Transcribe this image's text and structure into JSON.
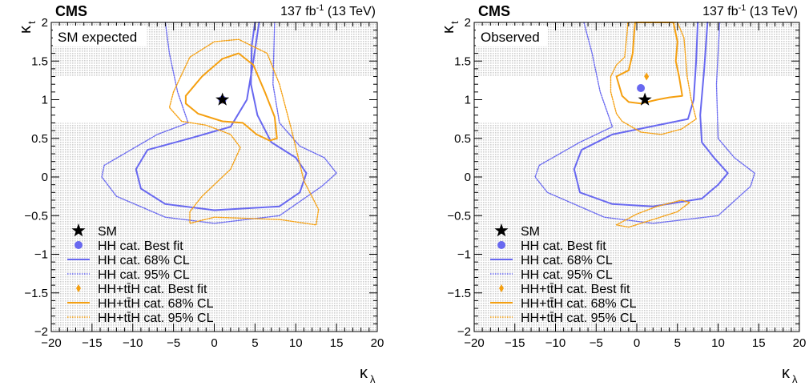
{
  "colors": {
    "hh": "#6868f0",
    "tth": "#f5a011",
    "band": "#d8d8d8",
    "star": "#000000"
  },
  "common": {
    "experiment": "CMS",
    "lumi": "137 fb",
    "lumi_exp": "-1",
    "energy": " (13 TeV)",
    "xlabel": "κ",
    "xlabel_sub": "λ",
    "ylabel": "κ",
    "ylabel_sub": "t"
  },
  "legend": [
    {
      "text": "SM",
      "kind": "star"
    },
    {
      "text": "HH cat. Best fit",
      "kind": "hh-dot"
    },
    {
      "text": "HH cat. 68% CL",
      "kind": "hh-solid"
    },
    {
      "text": "HH cat. 95% CL",
      "kind": "hh-dotted"
    },
    {
      "text": "HH+tt̄H cat. Best fit",
      "kind": "tth-diamond"
    },
    {
      "text": "HH+tt̄H cat. 68% CL",
      "kind": "tth-solid"
    },
    {
      "text": "HH+tt̄H cat. 95% CL",
      "kind": "tth-dotted"
    }
  ],
  "chart_data": [
    {
      "type": "scatter",
      "panel_label": "SM expected",
      "x_ticks": [
        -20,
        -15,
        -10,
        -5,
        0,
        5,
        10,
        15,
        20
      ],
      "y_ticks": [
        -2,
        -1.5,
        -1,
        -0.5,
        0,
        0.5,
        1,
        1.5,
        2
      ],
      "y_tick_labels": [
        "−2",
        "−1.5",
        "−1",
        "−0.5",
        "0",
        "0.5",
        "1",
        "1.5",
        "2"
      ],
      "xlim": [
        -20,
        20
      ],
      "ylim": [
        -2,
        2
      ],
      "excluded_bands_y": [
        [
          -2,
          0.7
        ],
        [
          1.3,
          2
        ]
      ],
      "sm_point": {
        "x": 1,
        "y": 1
      },
      "hh_best_fit": {
        "x": 1,
        "y": 1
      },
      "tth_best_fit": {
        "x": 1,
        "y": 1
      },
      "contours": [
        {
          "series": "HH cat. 68% CL",
          "style": "hh-solid",
          "points": [
            [
              5.5,
              2
            ],
            [
              4.8,
              1.5
            ],
            [
              4,
              1
            ],
            [
              2,
              0.65
            ],
            [
              -3,
              0.5
            ],
            [
              -8.2,
              0.35
            ],
            [
              -9.6,
              0.1
            ],
            [
              -9,
              -0.15
            ],
            [
              -6,
              -0.35
            ],
            [
              0,
              -0.43
            ],
            [
              8,
              -0.38
            ],
            [
              10.5,
              -0.2
            ],
            [
              11.3,
              0.05
            ],
            [
              10,
              0.25
            ],
            [
              7,
              0.45
            ],
            [
              5.3,
              0.8
            ],
            [
              4.5,
              1.2
            ],
            [
              4.6,
              1.7
            ],
            [
              5,
              2
            ]
          ]
        },
        {
          "series": "HH cat. 95% CL",
          "style": "hh-dotted",
          "points": [
            [
              -6,
              2
            ],
            [
              -5.5,
              1.6
            ],
            [
              -4.5,
              1.1
            ],
            [
              -3.2,
              0.7
            ],
            [
              -7,
              0.55
            ],
            [
              -13.5,
              0.15
            ],
            [
              -13.8,
              0
            ],
            [
              -12,
              -0.25
            ],
            [
              -6,
              -0.52
            ],
            [
              0,
              -0.6
            ],
            [
              8,
              -0.5
            ],
            [
              13.2,
              -0.12
            ],
            [
              15,
              0.05
            ],
            [
              13.5,
              0.25
            ],
            [
              10.5,
              0.4
            ],
            [
              8,
              0.7
            ],
            [
              7.2,
              1.2
            ],
            [
              7.4,
              2
            ]
          ]
        },
        {
          "series": "HH+tt̄H cat. 68% CL",
          "style": "tth-solid",
          "points": [
            [
              -3.5,
              1.05
            ],
            [
              -1.5,
              1.3
            ],
            [
              1,
              1.53
            ],
            [
              3,
              1.6
            ],
            [
              4.8,
              1.45
            ],
            [
              6.2,
              1.1
            ],
            [
              7.4,
              0.78
            ],
            [
              7.7,
              0.5
            ],
            [
              6.8,
              0.47
            ],
            [
              5.2,
              0.55
            ],
            [
              3.5,
              0.7
            ],
            [
              1,
              0.72
            ],
            [
              -2,
              0.82
            ],
            [
              -3.5,
              0.95
            ],
            [
              -3.5,
              1.05
            ]
          ]
        },
        {
          "series": "HH+tt̄H cat. 95% CL",
          "style": "tth-dotted",
          "points": [
            [
              -5,
              1.1
            ],
            [
              -3,
              1.55
            ],
            [
              0,
              1.75
            ],
            [
              3,
              1.78
            ],
            [
              6.5,
              1.6
            ],
            [
              8,
              1.2
            ],
            [
              9.5,
              0.6
            ],
            [
              11,
              -0.05
            ],
            [
              12.8,
              -0.42
            ],
            [
              12.5,
              -0.62
            ],
            [
              8,
              -0.55
            ],
            [
              0,
              -0.52
            ],
            [
              -3,
              -0.6
            ],
            [
              -3,
              -0.45
            ],
            [
              -1.5,
              -0.25
            ],
            [
              2,
              0.1
            ],
            [
              3.2,
              0.38
            ],
            [
              2,
              0.55
            ],
            [
              -1,
              0.67
            ],
            [
              -4,
              0.72
            ],
            [
              -5.5,
              0.9
            ],
            [
              -5,
              1.1
            ]
          ]
        }
      ]
    },
    {
      "type": "scatter",
      "panel_label": "Observed",
      "x_ticks": [
        -20,
        -15,
        -10,
        -5,
        0,
        5,
        10,
        15,
        20
      ],
      "y_ticks": [
        -2,
        -1.5,
        -1,
        -0.5,
        0,
        0.5,
        1,
        1.5,
        2
      ],
      "y_tick_labels": [
        "−2",
        "−1.5",
        "−1",
        "−0.5",
        "0",
        "0.5",
        "1",
        "1.5",
        "2"
      ],
      "xlim": [
        -20,
        20
      ],
      "ylim": [
        -2,
        2
      ],
      "excluded_bands_y": [
        [
          -2,
          0.7
        ],
        [
          1.3,
          2
        ]
      ],
      "sm_point": {
        "x": 1,
        "y": 1
      },
      "hh_best_fit": {
        "x": 0.5,
        "y": 1.15
      },
      "tth_best_fit": {
        "x": 1.2,
        "y": 1.3
      },
      "contours": [
        {
          "series": "HH cat. 68% CL",
          "style": "hh-solid",
          "points": [
            [
              7.5,
              2
            ],
            [
              7.3,
              1.5
            ],
            [
              7,
              1
            ],
            [
              6.3,
              0.75
            ],
            [
              -3,
              0.55
            ],
            [
              -6.8,
              0.35
            ],
            [
              -7.7,
              0.1
            ],
            [
              -7,
              -0.2
            ],
            [
              -3,
              -0.35
            ],
            [
              2,
              -0.38
            ],
            [
              8,
              -0.28
            ],
            [
              10,
              -0.1
            ],
            [
              11.2,
              0.05
            ],
            [
              9.5,
              0.25
            ],
            [
              8,
              0.45
            ],
            [
              7.8,
              0.8
            ],
            [
              8.3,
              1.4
            ],
            [
              8.7,
              2
            ]
          ]
        },
        {
          "series": "HH cat. 95% CL",
          "style": "hh-dotted",
          "points": [
            [
              -6.5,
              2
            ],
            [
              -5.5,
              1.6
            ],
            [
              -4.5,
              1.1
            ],
            [
              -3,
              0.65
            ],
            [
              -7,
              0.45
            ],
            [
              -12,
              0.15
            ],
            [
              -12.5,
              0
            ],
            [
              -11,
              -0.2
            ],
            [
              -4,
              -0.52
            ],
            [
              2,
              -0.6
            ],
            [
              10,
              -0.5
            ],
            [
              14,
              -0.12
            ],
            [
              14.5,
              0.05
            ],
            [
              12,
              0.25
            ],
            [
              10,
              0.5
            ],
            [
              9.8,
              1.2
            ],
            [
              10.2,
              2
            ]
          ]
        },
        {
          "series": "HH+tt̄H cat. 68% CL",
          "style": "tth-solid",
          "points": [
            [
              -2.5,
              1.3
            ],
            [
              -1,
              1.38
            ],
            [
              -0.5,
              1.6
            ],
            [
              -0.3,
              1.9
            ],
            [
              -0.2,
              2
            ],
            [
              2,
              2
            ],
            [
              4.5,
              2
            ],
            [
              5,
              1.75
            ],
            [
              4.8,
              1.5
            ],
            [
              5.2,
              1.3
            ],
            [
              5.6,
              1.05
            ],
            [
              4,
              1.03
            ],
            [
              2.5,
              1.0
            ],
            [
              0.5,
              0.95
            ],
            [
              -1,
              0.97
            ],
            [
              -1.8,
              1.05
            ],
            [
              -2.5,
              1.3
            ]
          ]
        },
        {
          "series": "HH+tt̄H cat. 95% CL",
          "style": "tth-dotted",
          "points": [
            [
              -3.2,
              1.3
            ],
            [
              -2.5,
              1.45
            ],
            [
              -1.5,
              1.55
            ],
            [
              -1.2,
              1.85
            ],
            [
              -1.1,
              2
            ],
            [
              5,
              2
            ],
            [
              5.8,
              1.8
            ],
            [
              6.2,
              1.3
            ],
            [
              6.7,
              1.0
            ],
            [
              7.3,
              0.75
            ],
            [
              5.5,
              0.62
            ],
            [
              3,
              0.55
            ],
            [
              0.5,
              0.58
            ],
            [
              -1.8,
              0.72
            ],
            [
              -2.5,
              0.82
            ],
            [
              -3.2,
              1.1
            ],
            [
              -3.2,
              1.3
            ]
          ]
        },
        {
          "series": "HH+tt̄H cat. 95% CL (lower island)",
          "style": "tth-dotted",
          "points": [
            [
              -2.5,
              -0.62
            ],
            [
              0,
              -0.48
            ],
            [
              2.5,
              -0.38
            ],
            [
              5.5,
              -0.3
            ],
            [
              6.5,
              -0.33
            ],
            [
              5,
              -0.45
            ],
            [
              2,
              -0.55
            ],
            [
              -1,
              -0.65
            ],
            [
              -2.5,
              -0.62
            ]
          ]
        }
      ]
    }
  ]
}
